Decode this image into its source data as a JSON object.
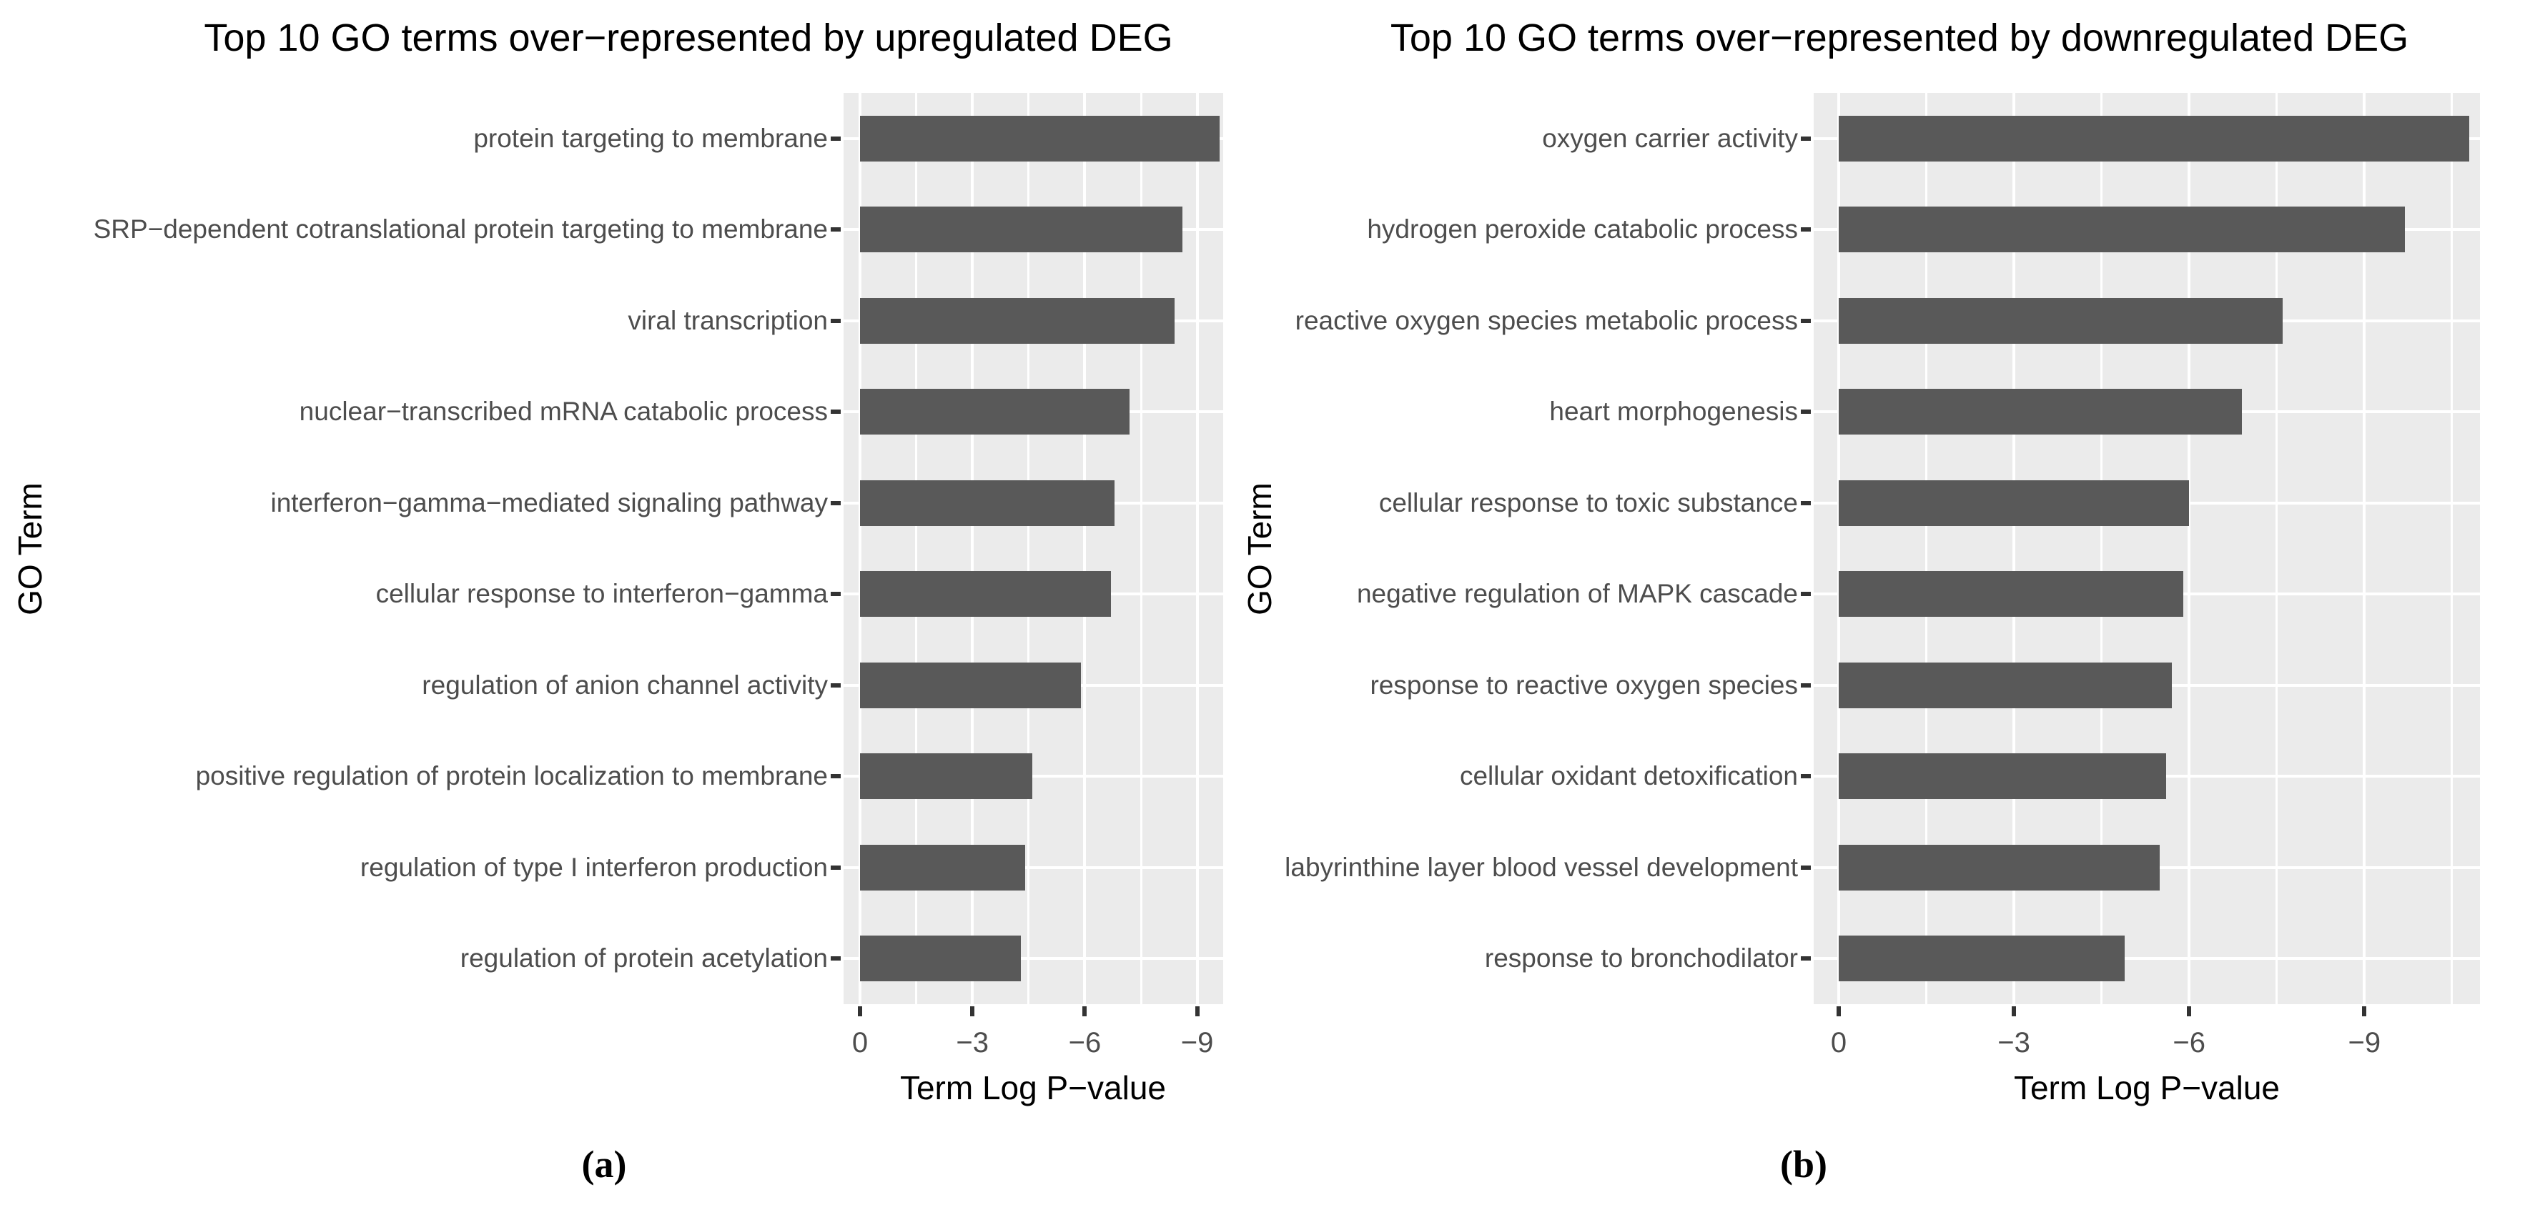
{
  "captions": {
    "a": "(a)",
    "b": "(b)"
  },
  "chart_data": [
    {
      "type": "bar",
      "orientation": "horizontal",
      "title": "Top 10 GO terms over−represented by upregulated DEG",
      "xlabel": "Term Log P−value",
      "ylabel": "GO Term",
      "x_tick_labels": [
        "0",
        "−3",
        "−6",
        "−9"
      ],
      "x_ticks": [
        0,
        -3,
        -6,
        -9
      ],
      "xlim": [
        0,
        -9.7
      ],
      "grid": "white major+minor gridlines on grey panel",
      "legend": "none",
      "bar_color": "#595959",
      "panel_bg": "#EBEBEB",
      "categories": [
        "protein targeting to membrane",
        "SRP−dependent cotranslational protein targeting to membrane",
        "viral transcription",
        "nuclear−transcribed mRNA catabolic process",
        "interferon−gamma−mediated signaling pathway",
        "cellular response to interferon−gamma",
        "regulation of anion channel activity",
        "positive regulation of protein localization to membrane",
        "regulation of type I interferon production",
        "regulation of protein acetylation"
      ],
      "values": [
        -9.6,
        -8.6,
        -8.4,
        -7.2,
        -6.8,
        -6.7,
        -5.9,
        -4.6,
        -4.4,
        -4.3
      ]
    },
    {
      "type": "bar",
      "orientation": "horizontal",
      "title": "Top 10 GO terms over−represented by downregulated DEG",
      "xlabel": "Term Log P−value",
      "ylabel": "GO Term",
      "x_tick_labels": [
        "0",
        "−3",
        "−6",
        "−9"
      ],
      "x_ticks": [
        0,
        -3,
        -6,
        -9
      ],
      "xlim": [
        0,
        -11.0
      ],
      "grid": "white major+minor gridlines on grey panel",
      "legend": "none",
      "bar_color": "#595959",
      "panel_bg": "#EBEBEB",
      "categories": [
        "oxygen carrier activity",
        "hydrogen peroxide catabolic process",
        "reactive oxygen species metabolic process",
        "heart morphogenesis",
        "cellular response to toxic substance",
        "negative regulation of MAPK cascade",
        "response to reactive oxygen species",
        "cellular oxidant detoxification",
        "labyrinthine layer blood vessel development",
        "response to bronchodilator"
      ],
      "values": [
        -10.8,
        -9.7,
        -7.6,
        -6.9,
        -6.0,
        -5.9,
        -5.7,
        -5.6,
        -5.5,
        -4.9
      ]
    }
  ]
}
